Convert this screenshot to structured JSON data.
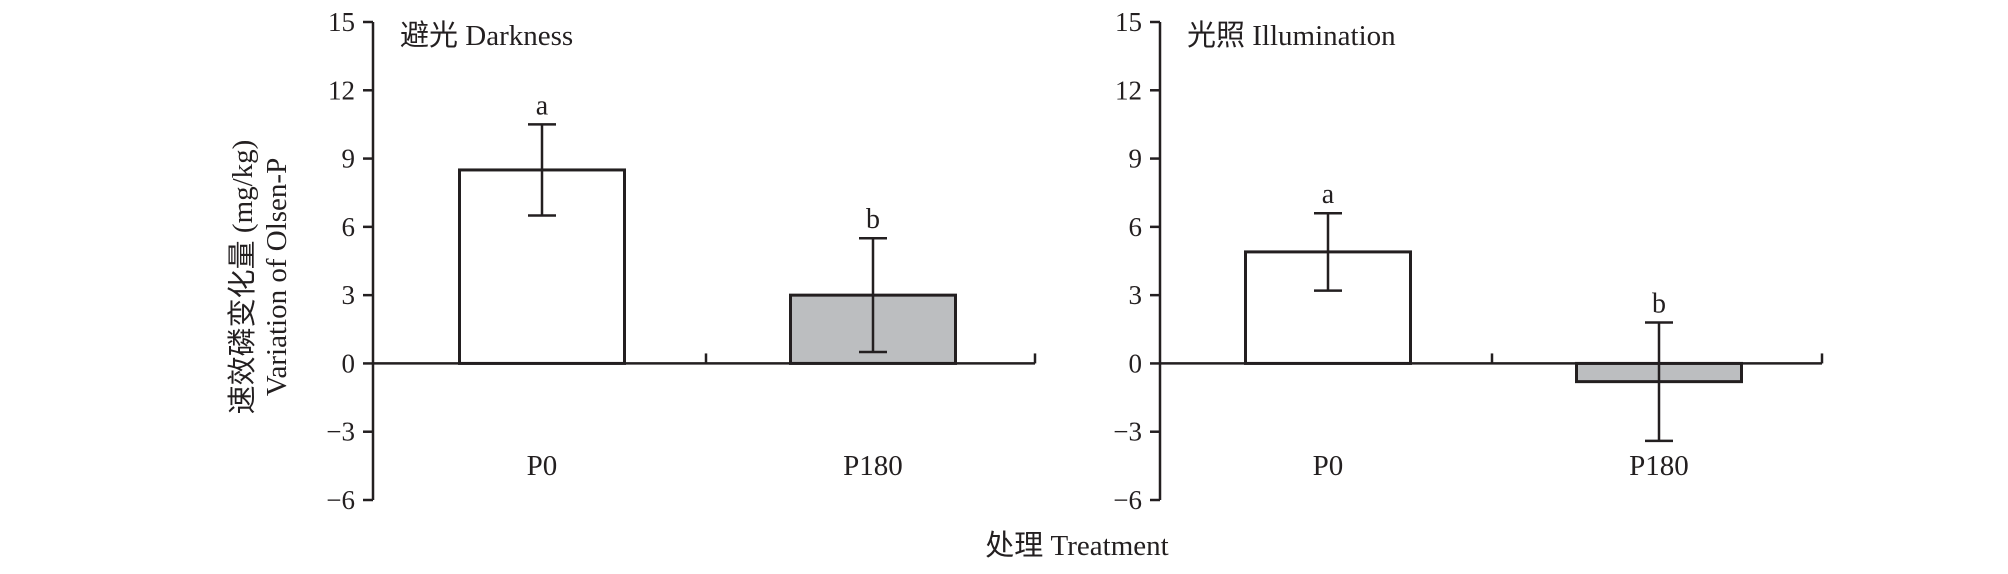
{
  "figure": {
    "ylabel_cn": "速效磷变化量 (mg/kg)",
    "ylabel_en": "Variation of Olsen-P",
    "xlabel": "处理 Treatment"
  },
  "colors": {
    "axis": "#231f20",
    "bar_p0": "#ffffff",
    "bar_p180": "#bcbec0"
  },
  "chart_data": [
    {
      "type": "bar",
      "title": "避光 Darkness",
      "categories": [
        "P0",
        "P180"
      ],
      "values": [
        8.5,
        3.0
      ],
      "error": [
        2.0,
        2.5
      ],
      "significance": [
        "a",
        "b"
      ],
      "bar_colors": [
        "#ffffff",
        "#bcbec0"
      ],
      "ylim": [
        -6,
        15
      ],
      "yticks": [
        "15",
        "12",
        "9",
        "6",
        "3",
        "0",
        "−3",
        "−6"
      ],
      "ytick_values": [
        15,
        12,
        9,
        6,
        3,
        0,
        -3,
        -6
      ],
      "grid": false
    },
    {
      "type": "bar",
      "title": "光照 Illumination",
      "categories": [
        "P0",
        "P180"
      ],
      "values": [
        4.9,
        -0.8
      ],
      "error": [
        1.7,
        2.6
      ],
      "significance": [
        "a",
        "b"
      ],
      "bar_colors": [
        "#ffffff",
        "#bcbec0"
      ],
      "ylim": [
        -6,
        15
      ],
      "yticks": [
        "15",
        "12",
        "9",
        "6",
        "3",
        "0",
        "−3",
        "−6"
      ],
      "ytick_values": [
        15,
        12,
        9,
        6,
        3,
        0,
        -3,
        -6
      ],
      "grid": false
    }
  ]
}
